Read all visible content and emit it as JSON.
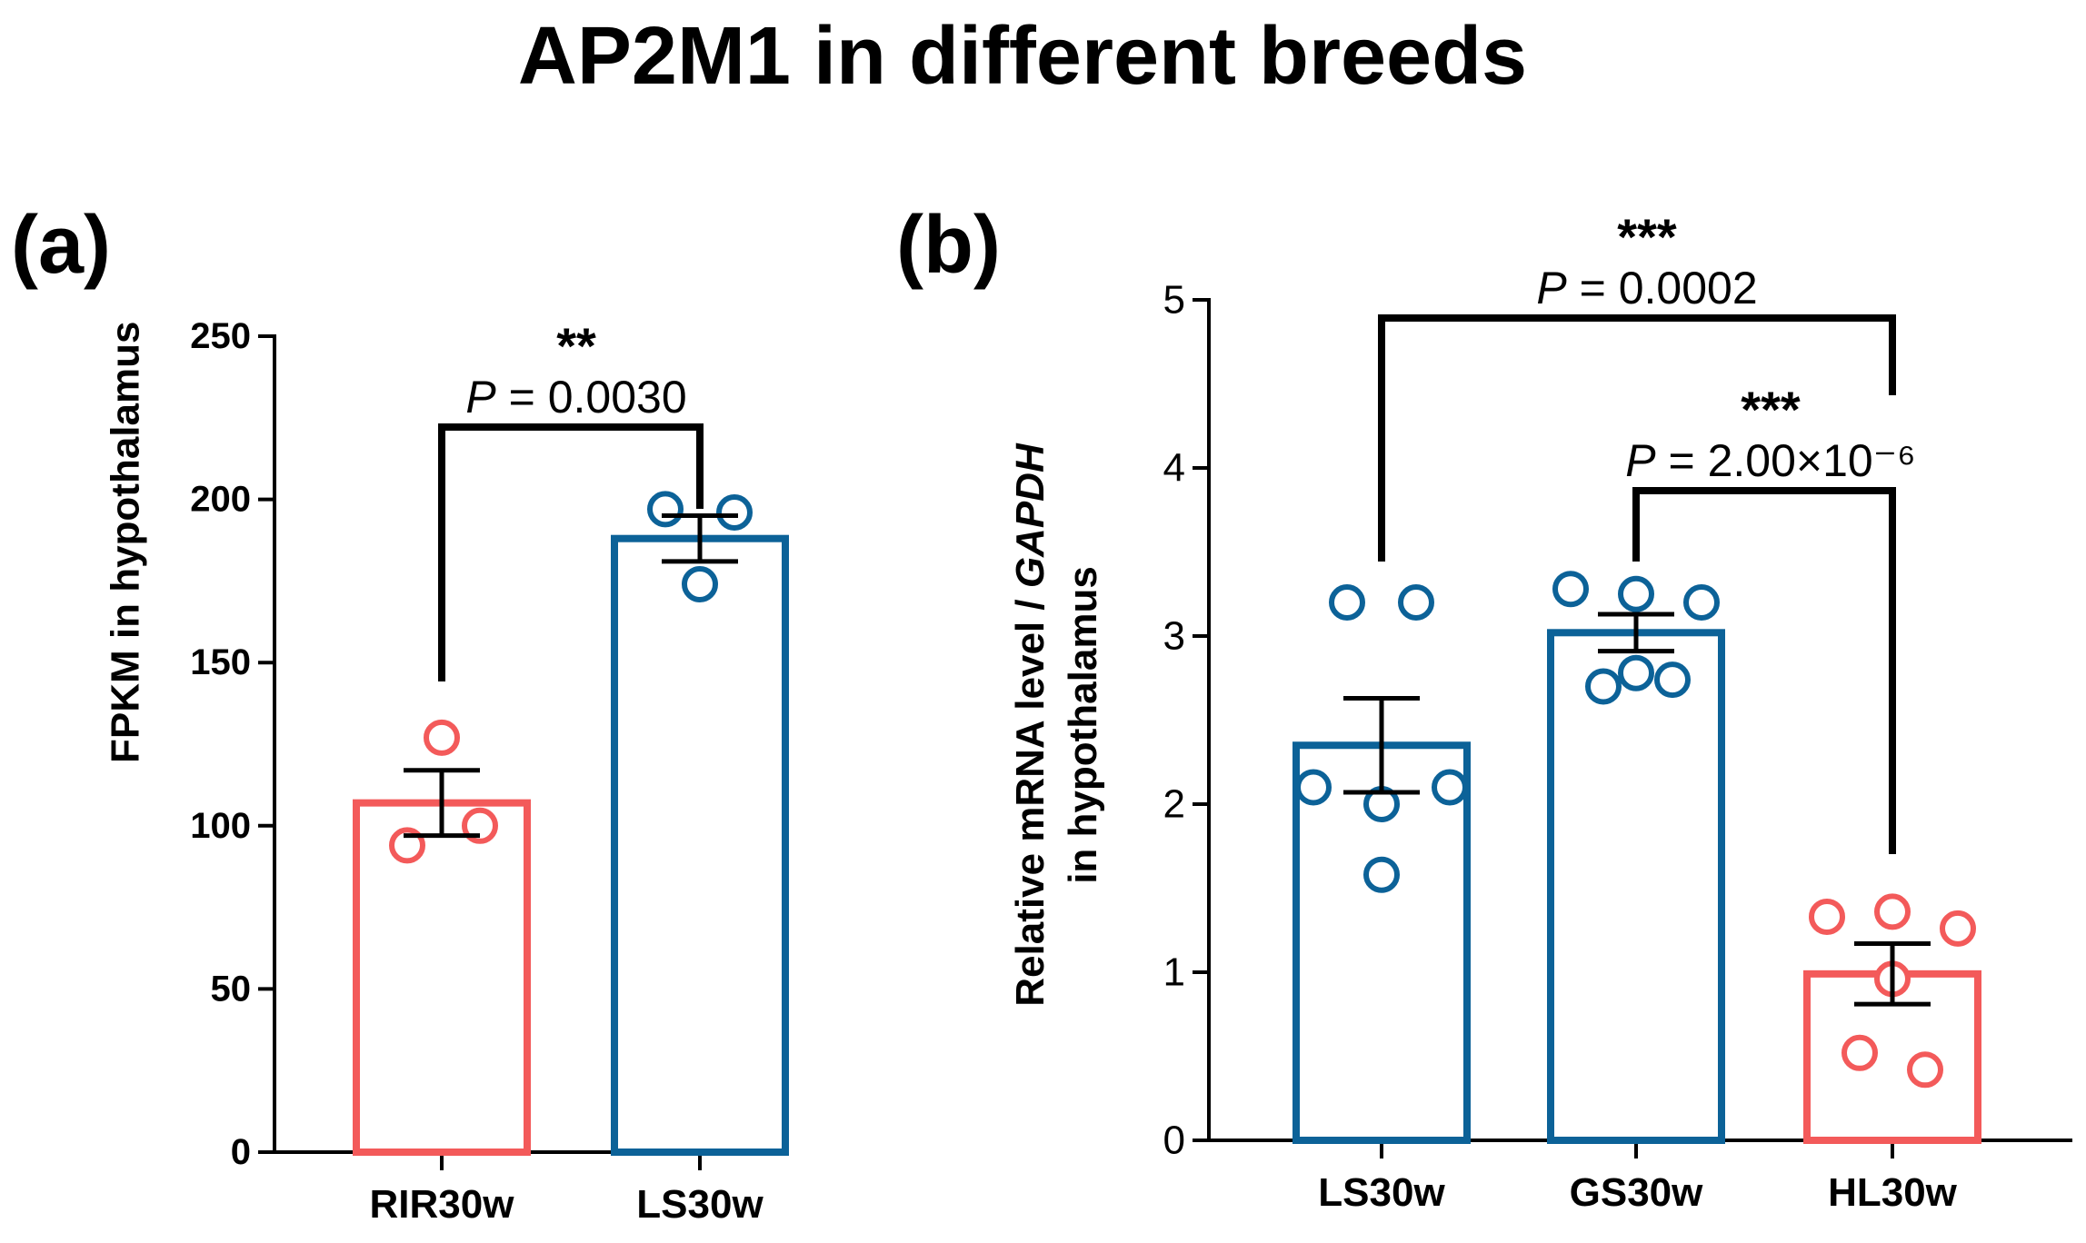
{
  "title": "AP2M1 in different breeds",
  "chart_data": [
    {
      "panel": "(a)",
      "type": "bar",
      "categories": [
        "RIR30w",
        "LS30w"
      ],
      "values": [
        107,
        188
      ],
      "error": [
        10,
        7
      ],
      "points": [
        [
          127,
          100,
          94
        ],
        [
          197,
          196,
          174
        ]
      ],
      "colors": [
        "#f35a5a",
        "#0c6298"
      ],
      "ylabel": "FPKM in hypothalamus",
      "ylim": [
        0,
        250
      ],
      "yticks": [
        "0",
        "50",
        "100",
        "150",
        "200",
        "250"
      ],
      "comparisons": [
        {
          "from": 0,
          "to": 1,
          "stars": "**",
          "p_prefix": "P",
          "p_text": " = 0.0030"
        }
      ]
    },
    {
      "panel": "(b)",
      "type": "bar",
      "categories": [
        "LS30w",
        "GS30w",
        "HL30w"
      ],
      "values": [
        2.35,
        3.02,
        0.99
      ],
      "error": [
        0.28,
        0.11,
        0.18
      ],
      "points": [
        [
          3.2,
          3.2,
          2.1,
          2.0,
          2.1,
          1.58
        ],
        [
          3.28,
          3.25,
          3.2,
          2.7,
          2.74,
          2.78
        ],
        [
          1.33,
          1.36,
          1.26,
          0.96,
          0.52,
          0.42
        ]
      ],
      "colors": [
        "#0c6298",
        "#0c6298",
        "#f35a5a"
      ],
      "ylabel_prefix": "Relative mRNA level / ",
      "ylabel_gene": "GAPDH",
      "ylabel_line2": "in hypothalamus",
      "ylim": [
        0,
        5
      ],
      "yticks": [
        "0",
        "1",
        "2",
        "3",
        "4",
        "5"
      ],
      "comparisons": [
        {
          "from": 0,
          "to": 2,
          "stars": "***",
          "p_prefix": "P",
          "p_text": " = 0.0002"
        },
        {
          "from": 1,
          "to": 2,
          "stars": "***",
          "p_prefix": "P",
          "p_text": " = 2.00×10⁻⁶"
        }
      ]
    }
  ]
}
